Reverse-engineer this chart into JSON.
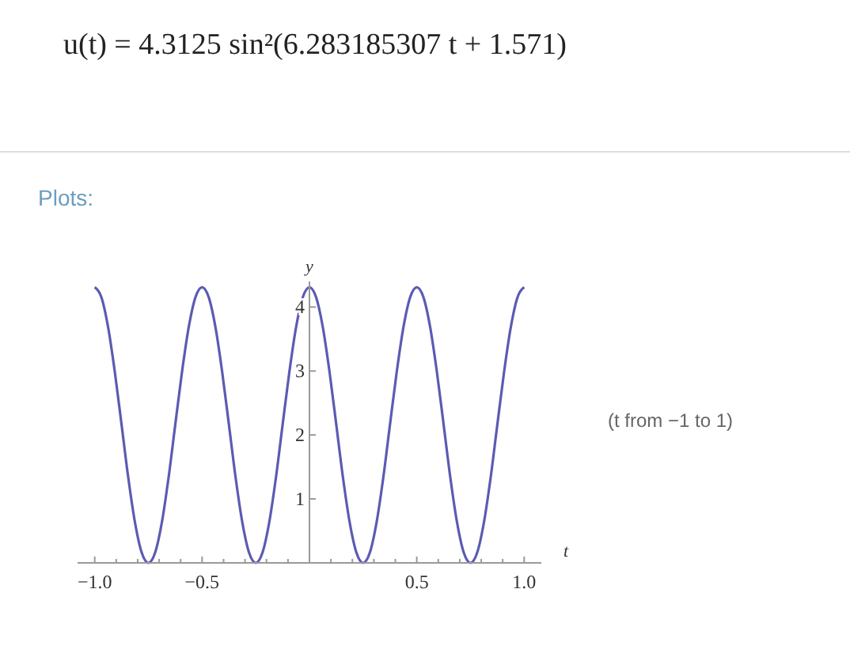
{
  "chart_data": {
    "type": "line",
    "title": "u(t) = 4.3125 sin²(6.283185307 t + 1.571)",
    "subtitle": "Plots:",
    "xlabel": "t",
    "ylabel": "y",
    "annotations": [
      "(t from −1 to 1)"
    ],
    "x": [
      -1,
      -0.96875,
      -0.9375,
      -0.90625,
      -0.875,
      -0.84375,
      -0.8125,
      -0.78125,
      -0.75,
      -0.71875,
      -0.6875,
      -0.65625,
      -0.625,
      -0.59375,
      -0.5625,
      -0.53125,
      -0.5,
      -0.46875,
      -0.4375,
      -0.40625,
      -0.375,
      -0.34375,
      -0.3125,
      -0.28125,
      -0.25,
      -0.21875,
      -0.1875,
      -0.15625,
      -0.125,
      -0.09375,
      -0.0625,
      -0.03125,
      0,
      0.03125,
      0.0625,
      0.09375,
      0.125,
      0.15625,
      0.1875,
      0.21875,
      0.25,
      0.28125,
      0.3125,
      0.34375,
      0.375,
      0.40625,
      0.4375,
      0.46875,
      0.5,
      0.53125,
      0.5625,
      0.59375,
      0.625,
      0.65625,
      0.6875,
      0.71875,
      0.75,
      0.78125,
      0.8125,
      0.84375,
      0.875,
      0.90625,
      0.9375,
      0.96875,
      1
    ],
    "series": [
      {
        "color": "#5b5bb3",
        "values": [
          4.31,
          4.15,
          3.68,
          2.98,
          2.16,
          1.33,
          0.63,
          0.16,
          0,
          0.16,
          0.63,
          1.33,
          2.16,
          2.98,
          3.68,
          4.15,
          4.31,
          4.15,
          3.68,
          2.98,
          2.16,
          1.33,
          0.63,
          0.16,
          0,
          0.16,
          0.63,
          1.33,
          2.16,
          2.98,
          3.68,
          4.15,
          4.31,
          4.15,
          3.68,
          2.98,
          2.16,
          1.33,
          0.63,
          0.16,
          0,
          0.16,
          0.63,
          1.33,
          2.16,
          2.98,
          3.68,
          4.15,
          4.31,
          4.15,
          3.68,
          2.98,
          2.16,
          1.33,
          0.63,
          0.16,
          0,
          0.16,
          0.63,
          1.33,
          2.16,
          2.98,
          3.68,
          4.15,
          4.31
        ]
      }
    ],
    "xlim": [
      -1.08,
      1.08
    ],
    "ylim": [
      0,
      4.4
    ],
    "xticks": [
      {
        "value": -1,
        "label": "−1.0"
      },
      {
        "value": -0.9,
        "label": null
      },
      {
        "value": -0.8,
        "label": null
      },
      {
        "value": -0.7,
        "label": null
      },
      {
        "value": -0.6,
        "label": null
      },
      {
        "value": -0.5,
        "label": "−0.5"
      },
      {
        "value": -0.4,
        "label": null
      },
      {
        "value": -0.3,
        "label": null
      },
      {
        "value": -0.2,
        "label": null
      },
      {
        "value": -0.1,
        "label": null
      },
      {
        "value": 0.1,
        "label": null
      },
      {
        "value": 0.2,
        "label": null
      },
      {
        "value": 0.3,
        "label": null
      },
      {
        "value": 0.4,
        "label": null
      },
      {
        "value": 0.5,
        "label": "0.5"
      },
      {
        "value": 0.6,
        "label": null
      },
      {
        "value": 0.7,
        "label": null
      },
      {
        "value": 0.8,
        "label": null
      },
      {
        "value": 0.9,
        "label": null
      },
      {
        "value": 1,
        "label": "1.0"
      }
    ],
    "yticks": [
      1,
      2,
      3,
      4
    ],
    "grid": false,
    "line_style": "solid"
  }
}
